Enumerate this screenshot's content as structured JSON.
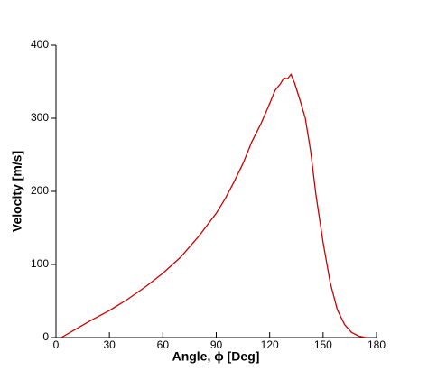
{
  "chart_data": {
    "type": "line",
    "xlabel": "Angle, ϕ [Deg]",
    "ylabel": "Velocity [m/s]",
    "x": [
      3,
      10,
      20,
      30,
      40,
      50,
      60,
      70,
      80,
      90,
      95,
      100,
      105,
      110,
      115,
      120,
      123,
      126,
      128,
      130,
      132,
      134,
      137,
      140,
      143,
      146,
      150,
      154,
      158,
      162,
      166,
      170,
      174
    ],
    "series": [
      {
        "color": "#cc0000",
        "values": [
          0,
          10,
          24,
          37,
          52,
          69,
          88,
          110,
          138,
          170,
          190,
          213,
          238,
          268,
          292,
          320,
          338,
          347,
          355,
          354,
          360,
          348,
          325,
          300,
          255,
          195,
          130,
          75,
          38,
          18,
          7,
          2,
          0
        ]
      }
    ],
    "xlim": [
      0,
      180
    ],
    "xticks": [
      0,
      30,
      60,
      90,
      120,
      150,
      180
    ],
    "ylim": [
      0,
      400
    ],
    "yticks": [
      0,
      100,
      200,
      300,
      400
    ]
  }
}
